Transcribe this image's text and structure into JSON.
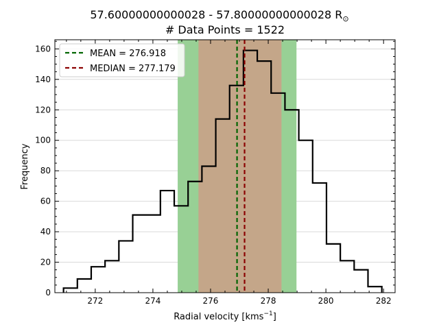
{
  "chart_data": {
    "type": "histogram",
    "title_line1": "57.60000000000028 - 57.80000000000028 R",
    "title_symbol": "⊙",
    "title_line2": "# Data Points = 1522",
    "xlabel": "Radial velocity [kms",
    "xlabel_sup": "−1",
    "xlabel_end": "]",
    "ylabel": "Frequency",
    "xlim": [
      270.6,
      282.4
    ],
    "ylim": [
      0,
      166
    ],
    "xticks": [
      272,
      274,
      276,
      278,
      280,
      282
    ],
    "yticks": [
      0,
      20,
      40,
      60,
      80,
      100,
      120,
      140,
      160
    ],
    "grid": "y",
    "bin_edges": [
      270.9,
      271.38,
      271.86,
      272.34,
      272.82,
      273.3,
      273.78,
      274.26,
      274.74,
      275.22,
      275.7,
      276.18,
      276.66,
      277.14,
      277.62,
      278.1,
      278.58,
      279.06,
      279.54,
      280.02,
      280.5,
      280.98,
      281.46,
      281.94
    ],
    "counts": [
      3,
      9,
      17,
      21,
      34,
      51,
      51,
      67,
      57,
      73,
      83,
      114,
      136,
      159,
      152,
      131,
      120,
      100,
      72,
      32,
      21,
      15,
      4
    ],
    "mean": 276.918,
    "median": 277.179,
    "bands": [
      {
        "x0": 274.86,
        "x1": 278.98,
        "color": "#98d095"
      },
      {
        "x0": 275.58,
        "x1": 278.46,
        "color": "#c4a689"
      }
    ],
    "legend": [
      {
        "label": "MEAN = 276.918",
        "color": "#006400"
      },
      {
        "label": "MEDIAN = 277.179",
        "color": "#8b0000"
      }
    ],
    "legend_position": "top-left"
  }
}
